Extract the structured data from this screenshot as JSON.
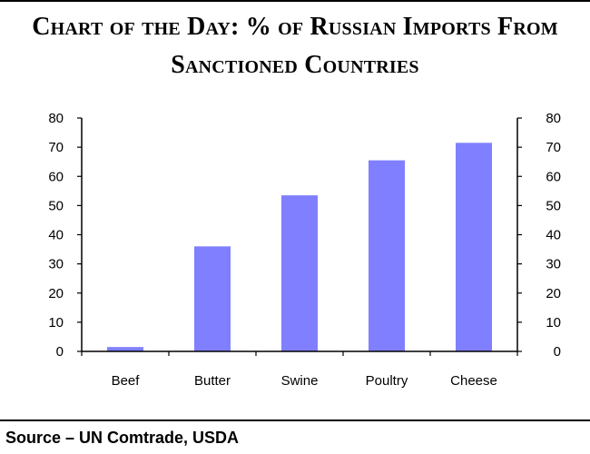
{
  "title_lines": [
    "Chart of the Day: % of Russian Imports From",
    "Sanctioned Countries"
  ],
  "source": "Source – UN Comtrade, USDA",
  "chart_data": {
    "type": "bar",
    "title": "Chart of the Day: % of Russian Imports From Sanctioned Countries",
    "categories": [
      "Beef",
      "Butter",
      "Swine",
      "Poultry",
      "Cheese"
    ],
    "values": [
      1.5,
      36,
      53.5,
      65.5,
      71.5
    ],
    "ylim": [
      0,
      80
    ],
    "yticks": [
      0,
      10,
      20,
      30,
      40,
      50,
      60,
      70,
      80
    ],
    "secondary_y_axis": true,
    "grid": false,
    "bar_color": "#7f7fff"
  }
}
